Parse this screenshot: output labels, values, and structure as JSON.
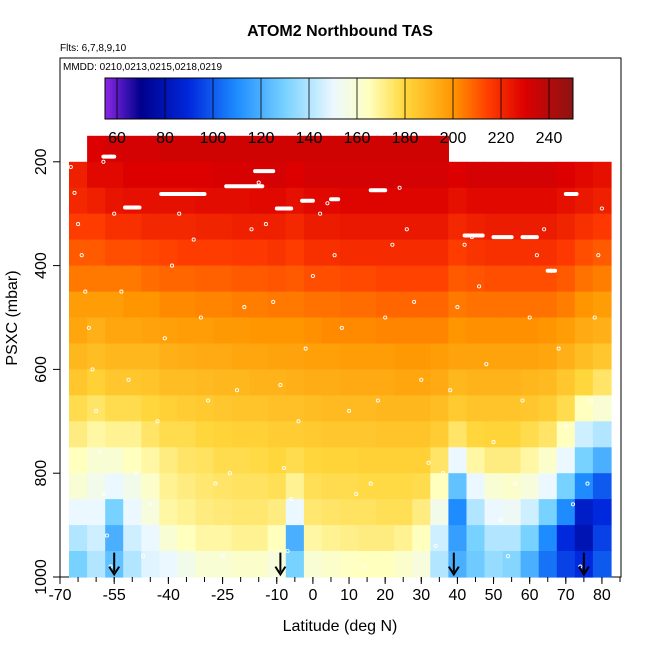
{
  "chart_data": {
    "type": "heatmap",
    "title": "ATOM2 Northbound TAS",
    "flights_label": "Flts: 6,7,8,9,10",
    "dates_label": "MMDD: 0210,0213,0215,0218,0219",
    "xlabel": "Latitude (deg N)",
    "ylabel": "PSXC (mbar)",
    "xlim": [
      -70,
      85
    ],
    "ylim": [
      1000,
      0
    ],
    "x_ticks": [
      -70,
      -55,
      -40,
      -25,
      -10,
      0,
      10,
      20,
      30,
      40,
      50,
      60,
      70,
      80
    ],
    "x_minor_step": 5,
    "y_ticks": [
      200,
      400,
      600,
      800,
      1000
    ],
    "colorbar": {
      "range": [
        55,
        250
      ],
      "ticks": [
        60,
        80,
        100,
        120,
        140,
        160,
        180,
        200,
        220,
        240
      ]
    },
    "pressure_levels": [
      175,
      225,
      275,
      325,
      375,
      425,
      475,
      525,
      575,
      625,
      675,
      725,
      775,
      825,
      875,
      925,
      975
    ],
    "columns": [
      {
        "lat": -65,
        "values": [
          null,
          222,
          220,
          215,
          210,
          205,
          198,
          195,
          190,
          185,
          178,
          172,
          165,
          160,
          150,
          140,
          130
        ]
      },
      {
        "lat": -60,
        "values": [
          230,
          228,
          222,
          215,
          210,
          205,
          198,
          192,
          188,
          182,
          175,
          168,
          160,
          155,
          150,
          145,
          140
        ]
      },
      {
        "lat": -55,
        "values": [
          232,
          228,
          225,
          218,
          212,
          205,
          198,
          195,
          190,
          185,
          178,
          170,
          160,
          150,
          130,
          120,
          125
        ]
      },
      {
        "lat": -50,
        "values": [
          232,
          230,
          226,
          218,
          212,
          205,
          200,
          195,
          190,
          185,
          178,
          170,
          165,
          155,
          150,
          145,
          140
        ]
      },
      {
        "lat": -45,
        "values": [
          232,
          230,
          226,
          220,
          213,
          207,
          200,
          196,
          190,
          186,
          180,
          175,
          168,
          162,
          158,
          150,
          148
        ]
      },
      {
        "lat": -40,
        "values": [
          233,
          230,
          226,
          220,
          214,
          208,
          202,
          197,
          192,
          188,
          182,
          178,
          172,
          170,
          168,
          160,
          150
        ]
      },
      {
        "lat": -35,
        "values": [
          233,
          230,
          226,
          220,
          215,
          208,
          202,
          198,
          193,
          188,
          183,
          178,
          175,
          172,
          170,
          165,
          155
        ]
      },
      {
        "lat": -30,
        "values": [
          233,
          230,
          227,
          221,
          215,
          209,
          203,
          198,
          194,
          189,
          184,
          180,
          176,
          174,
          172,
          168,
          160
        ]
      },
      {
        "lat": -25,
        "values": [
          233,
          231,
          227,
          221,
          215,
          209,
          203,
          199,
          194,
          190,
          185,
          181,
          178,
          175,
          173,
          168,
          160
        ]
      },
      {
        "lat": -20,
        "values": [
          233,
          231,
          227,
          222,
          216,
          210,
          204,
          199,
          195,
          190,
          186,
          182,
          178,
          176,
          174,
          170,
          162
        ]
      },
      {
        "lat": -15,
        "values": [
          233,
          231,
          228,
          222,
          216,
          210,
          204,
          200,
          195,
          191,
          186,
          182,
          179,
          176,
          174,
          170,
          162
        ]
      },
      {
        "lat": -10,
        "values": [
          233,
          232,
          228,
          222,
          217,
          211,
          205,
          200,
          196,
          191,
          187,
          183,
          180,
          177,
          172,
          165,
          158
        ]
      },
      {
        "lat": -5,
        "values": [
          233,
          230,
          226,
          220,
          215,
          210,
          205,
          200,
          196,
          192,
          187,
          183,
          178,
          170,
          150,
          120,
          130
        ]
      },
      {
        "lat": 0,
        "values": [
          233,
          232,
          228,
          223,
          218,
          212,
          206,
          201,
          197,
          193,
          188,
          184,
          180,
          177,
          174,
          168,
          160
        ]
      },
      {
        "lat": 5,
        "values": [
          233,
          232,
          228,
          223,
          218,
          212,
          206,
          202,
          197,
          193,
          189,
          185,
          181,
          178,
          175,
          170,
          162
        ]
      },
      {
        "lat": 10,
        "values": [
          233,
          232,
          229,
          224,
          219,
          213,
          207,
          202,
          198,
          194,
          189,
          185,
          181,
          178,
          176,
          171,
          164
        ]
      },
      {
        "lat": 15,
        "values": [
          233,
          232,
          229,
          224,
          219,
          213,
          207,
          202,
          198,
          194,
          189,
          185,
          182,
          179,
          176,
          172,
          165
        ]
      },
      {
        "lat": 20,
        "values": [
          233,
          232,
          229,
          224,
          219,
          214,
          208,
          203,
          198,
          194,
          190,
          186,
          182,
          179,
          177,
          172,
          165
        ]
      },
      {
        "lat": 25,
        "values": [
          233,
          232,
          229,
          224,
          219,
          214,
          208,
          203,
          199,
          195,
          190,
          186,
          182,
          179,
          177,
          170,
          162
        ]
      },
      {
        "lat": 30,
        "values": [
          233,
          232,
          229,
          224,
          219,
          214,
          208,
          203,
          199,
          195,
          190,
          186,
          182,
          178,
          172,
          165,
          158
        ]
      },
      {
        "lat": 35,
        "values": [
          233,
          232,
          229,
          224,
          219,
          214,
          208,
          203,
          198,
          194,
          188,
          183,
          175,
          165,
          155,
          145,
          140
        ]
      },
      {
        "lat": 40,
        "values": [
          null,
          230,
          226,
          220,
          215,
          210,
          205,
          200,
          196,
          190,
          184,
          175,
          150,
          125,
          110,
          115,
          120
        ]
      },
      {
        "lat": 45,
        "values": [
          null,
          232,
          228,
          222,
          217,
          211,
          206,
          201,
          196,
          191,
          186,
          180,
          168,
          150,
          140,
          130,
          128
        ]
      },
      {
        "lat": 50,
        "values": [
          null,
          232,
          228,
          223,
          218,
          212,
          206,
          201,
          196,
          191,
          186,
          181,
          172,
          160,
          150,
          140,
          135
        ]
      },
      {
        "lat": 55,
        "values": [
          null,
          232,
          228,
          223,
          218,
          212,
          206,
          201,
          196,
          191,
          186,
          181,
          172,
          162,
          152,
          140,
          132
        ]
      },
      {
        "lat": 60,
        "values": [
          null,
          232,
          228,
          223,
          218,
          212,
          206,
          201,
          196,
          190,
          185,
          178,
          168,
          158,
          145,
          130,
          120
        ]
      },
      {
        "lat": 65,
        "values": [
          null,
          232,
          228,
          223,
          218,
          212,
          206,
          200,
          195,
          189,
          183,
          175,
          162,
          150,
          130,
          110,
          105
        ]
      },
      {
        "lat": 70,
        "values": [
          null,
          230,
          226,
          221,
          216,
          210,
          204,
          198,
          192,
          185,
          178,
          165,
          150,
          130,
          110,
          90,
          95
        ]
      },
      {
        "lat": 75,
        "values": [
          null,
          228,
          224,
          218,
          212,
          206,
          200,
          194,
          188,
          180,
          165,
          145,
          130,
          110,
          85,
          80,
          90
        ]
      },
      {
        "lat": 80,
        "values": [
          null,
          226,
          222,
          216,
          210,
          204,
          198,
          192,
          185,
          175,
          160,
          140,
          120,
          100,
          90,
          95,
          100
        ]
      }
    ],
    "flight_track_points": [
      [
        -67,
        210
      ],
      [
        -66,
        260
      ],
      [
        -65,
        320
      ],
      [
        -64,
        380
      ],
      [
        -63,
        450
      ],
      [
        -62,
        520
      ],
      [
        -61,
        600
      ],
      [
        -60,
        680
      ],
      [
        -59,
        760
      ],
      [
        -58,
        840
      ],
      [
        -57,
        920
      ],
      [
        -56,
        980
      ],
      [
        -58,
        200
      ],
      [
        -56,
        190
      ],
      [
        -55,
        300
      ],
      [
        -53,
        450
      ],
      [
        -51,
        620
      ],
      [
        -49,
        800
      ],
      [
        -47,
        960
      ],
      [
        -45,
        860
      ],
      [
        -43,
        700
      ],
      [
        -41,
        540
      ],
      [
        -39,
        400
      ],
      [
        -37,
        300
      ],
      [
        -35,
        262
      ],
      [
        -33,
        350
      ],
      [
        -31,
        500
      ],
      [
        -29,
        660
      ],
      [
        -27,
        820
      ],
      [
        -25,
        960
      ],
      [
        -23,
        800
      ],
      [
        -21,
        640
      ],
      [
        -19,
        480
      ],
      [
        -17,
        330
      ],
      [
        -15,
        240
      ],
      [
        -13,
        320
      ],
      [
        -11,
        470
      ],
      [
        -9,
        630
      ],
      [
        -8,
        790
      ],
      [
        -7,
        950
      ],
      [
        -6,
        850
      ],
      [
        -4,
        700
      ],
      [
        -2,
        560
      ],
      [
        0,
        420
      ],
      [
        2,
        300
      ],
      [
        4,
        280
      ],
      [
        6,
        380
      ],
      [
        8,
        520
      ],
      [
        10,
        680
      ],
      [
        12,
        840
      ],
      [
        14,
        980
      ],
      [
        16,
        820
      ],
      [
        18,
        660
      ],
      [
        20,
        500
      ],
      [
        22,
        360
      ],
      [
        24,
        250
      ],
      [
        26,
        330
      ],
      [
        28,
        470
      ],
      [
        30,
        620
      ],
      [
        32,
        780
      ],
      [
        34,
        940
      ],
      [
        36,
        800
      ],
      [
        38,
        640
      ],
      [
        40,
        480
      ],
      [
        42,
        360
      ],
      [
        44,
        345
      ],
      [
        46,
        440
      ],
      [
        48,
        590
      ],
      [
        50,
        740
      ],
      [
        52,
        890
      ],
      [
        54,
        960
      ],
      [
        56,
        820
      ],
      [
        58,
        660
      ],
      [
        60,
        500
      ],
      [
        62,
        380
      ],
      [
        64,
        330
      ],
      [
        66,
        410
      ],
      [
        68,
        560
      ],
      [
        70,
        710
      ],
      [
        72,
        860
      ],
      [
        74,
        980
      ],
      [
        76,
        820
      ],
      [
        77,
        660
      ],
      [
        78,
        500
      ],
      [
        79,
        380
      ],
      [
        80,
        290
      ]
    ],
    "level_flight_segments": [
      {
        "x": [
          -58,
          -55
        ],
        "y": 190
      },
      {
        "x": [
          -52,
          -48
        ],
        "y": 288
      },
      {
        "x": [
          -42,
          -30
        ],
        "y": 262
      },
      {
        "x": [
          -24,
          -14
        ],
        "y": 247
      },
      {
        "x": [
          -16,
          -11
        ],
        "y": 218
      },
      {
        "x": [
          -10,
          -6
        ],
        "y": 290
      },
      {
        "x": [
          -3,
          0
        ],
        "y": 275
      },
      {
        "x": [
          5,
          7
        ],
        "y": 272
      },
      {
        "x": [
          16,
          20
        ],
        "y": 255
      },
      {
        "x": [
          42,
          47
        ],
        "y": 342
      },
      {
        "x": [
          50,
          55
        ],
        "y": 345
      },
      {
        "x": [
          58,
          62
        ],
        "y": 345
      },
      {
        "x": [
          65,
          67
        ],
        "y": 410
      },
      {
        "x": [
          70,
          73
        ],
        "y": 262
      }
    ],
    "arrows_lat": [
      -55,
      -9,
      39,
      75
    ]
  }
}
